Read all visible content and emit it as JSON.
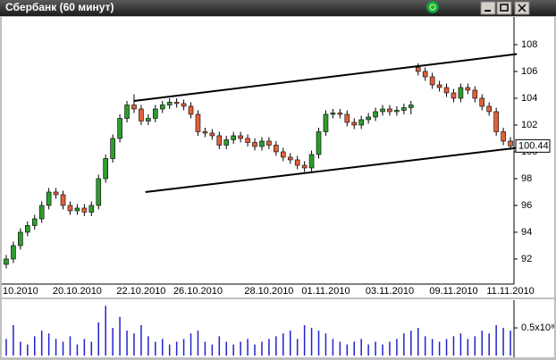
{
  "chart_data": {
    "type": "candlestick",
    "title": "Сбербанк (60 минут)",
    "categories": [
      null,
      null,
      "10.2010",
      null,
      null,
      null,
      null,
      null,
      null,
      null,
      "20.10.2010",
      null,
      null,
      null,
      null,
      null,
      null,
      null,
      null,
      "22.10.2010",
      null,
      null,
      null,
      null,
      null,
      null,
      null,
      "26.10.2010",
      null,
      null,
      null,
      null,
      null,
      null,
      null,
      null,
      null,
      "28.10.2010",
      null,
      null,
      null,
      null,
      null,
      null,
      null,
      "01.11.2010",
      null,
      null,
      null,
      null,
      null,
      null,
      null,
      null,
      "03.11.2010",
      null,
      null,
      null,
      null,
      null,
      null,
      null,
      null,
      "09.11.2010",
      null,
      null,
      null,
      null,
      null,
      null,
      null,
      "11.11.2010"
    ],
    "open": [
      91.6,
      92.0,
      93.0,
      94.0,
      94.5,
      95.0,
      96.0,
      97.0,
      96.8,
      96.0,
      95.6,
      95.8,
      95.5,
      96.0,
      98.0,
      99.5,
      101.0,
      102.5,
      103.5,
      103.2,
      102.3,
      102.5,
      103.2,
      103.5,
      103.7,
      103.6,
      103.4,
      102.8,
      101.5,
      101.4,
      101.2,
      100.5,
      100.9,
      101.2,
      101.0,
      100.7,
      100.4,
      100.8,
      100.5,
      100.0,
      99.6,
      99.4,
      99.0,
      98.8,
      99.8,
      101.5,
      102.8,
      102.9,
      102.8,
      102.2,
      102.0,
      102.4,
      102.6,
      103.0,
      103.2,
      103.0,
      103.1,
      103.3,
      106.3,
      106.0,
      105.6,
      105.0,
      104.8,
      104.4,
      104.0,
      104.8,
      104.6,
      104.0,
      103.4,
      103.0,
      101.5,
      100.8
    ],
    "high": [
      92.3,
      93.3,
      94.3,
      94.8,
      95.3,
      96.3,
      97.3,
      97.3,
      97.1,
      96.3,
      96.1,
      96.1,
      96.3,
      98.3,
      99.8,
      101.3,
      102.8,
      103.8,
      104.3,
      103.5,
      102.8,
      103.5,
      103.8,
      104.0,
      104.0,
      103.9,
      103.7,
      103.1,
      101.8,
      101.7,
      101.5,
      101.2,
      101.5,
      101.5,
      101.3,
      101.0,
      101.1,
      101.1,
      100.8,
      100.3,
      99.9,
      99.7,
      99.3,
      100.1,
      101.8,
      103.1,
      103.2,
      103.2,
      103.1,
      102.5,
      102.7,
      102.9,
      103.3,
      103.5,
      103.5,
      103.4,
      103.6,
      103.8,
      106.6,
      106.3,
      105.9,
      105.3,
      105.1,
      104.7,
      105.1,
      105.1,
      104.9,
      104.3,
      103.7,
      103.3,
      101.8,
      101.1
    ],
    "low": [
      91.3,
      91.7,
      92.7,
      93.7,
      94.2,
      94.7,
      95.7,
      96.5,
      95.7,
      95.3,
      95.3,
      95.2,
      95.2,
      95.7,
      97.7,
      99.2,
      100.7,
      102.2,
      102.9,
      102.0,
      102.0,
      102.2,
      102.9,
      103.2,
      103.3,
      103.1,
      102.5,
      101.2,
      101.1,
      100.9,
      100.2,
      100.2,
      100.6,
      100.7,
      100.4,
      100.1,
      100.1,
      100.2,
      99.7,
      99.3,
      99.1,
      98.7,
      98.5,
      98.5,
      99.5,
      101.2,
      102.5,
      102.5,
      101.9,
      101.7,
      101.7,
      102.1,
      102.3,
      102.7,
      102.7,
      102.7,
      102.8,
      102.8,
      105.7,
      105.3,
      104.7,
      104.5,
      104.1,
      103.7,
      103.7,
      104.3,
      103.7,
      103.1,
      102.7,
      101.2,
      100.5,
      100.14
    ],
    "close": [
      92.0,
      93.0,
      94.0,
      94.5,
      95.0,
      96.0,
      97.0,
      96.8,
      96.0,
      95.6,
      95.8,
      95.5,
      96.0,
      98.0,
      99.5,
      101.0,
      102.5,
      103.5,
      103.2,
      102.3,
      102.5,
      103.2,
      103.5,
      103.7,
      103.6,
      103.4,
      102.8,
      101.5,
      101.4,
      101.2,
      100.5,
      100.9,
      101.2,
      101.0,
      100.7,
      100.4,
      100.8,
      100.5,
      100.0,
      99.6,
      99.4,
      99.0,
      98.8,
      99.8,
      101.5,
      102.8,
      102.9,
      102.8,
      102.2,
      102.0,
      102.4,
      102.6,
      103.0,
      103.2,
      103.0,
      103.1,
      103.3,
      103.5,
      106.0,
      105.6,
      105.0,
      104.8,
      104.4,
      104.0,
      104.8,
      104.6,
      104.0,
      103.4,
      103.0,
      101.5,
      100.8,
      100.44
    ],
    "up_color": "#2e9c2e",
    "down_color": "#e0603c",
    "ylim": [
      90.13,
      110
    ],
    "yticks": [
      92,
      94,
      96,
      98,
      100,
      102,
      104,
      106,
      108
    ],
    "grid": false,
    "trendlines": [
      {
        "x": [
          18.0,
          71.9
        ],
        "y": [
          103.8,
          107.3
        ]
      },
      {
        "x": [
          19.6,
          71.9
        ],
        "y": [
          97.0,
          100.3
        ]
      }
    ],
    "volume": [
      30000000,
      55000000,
      25000000,
      20000000,
      35000000,
      45000000,
      40000000,
      30000000,
      25000000,
      35000000,
      20000000,
      30000000,
      25000000,
      60000000,
      90000000,
      50000000,
      70000000,
      45000000,
      40000000,
      55000000,
      35000000,
      25000000,
      30000000,
      20000000,
      25000000,
      30000000,
      40000000,
      45000000,
      25000000,
      20000000,
      35000000,
      25000000,
      20000000,
      25000000,
      30000000,
      20000000,
      25000000,
      30000000,
      35000000,
      40000000,
      45000000,
      30000000,
      55000000,
      50000000,
      45000000,
      40000000,
      30000000,
      25000000,
      20000000,
      25000000,
      30000000,
      20000000,
      25000000,
      20000000,
      25000000,
      30000000,
      40000000,
      45000000,
      50000000,
      35000000,
      30000000,
      25000000,
      30000000,
      35000000,
      40000000,
      30000000,
      35000000,
      45000000,
      40000000,
      55000000,
      50000000,
      45000000
    ],
    "volume_color": "#2222cc",
    "vlim": [
      0,
      97000000
    ],
    "vticks": [
      {
        "value": 50000000,
        "label": "0.5x10⁸"
      }
    ]
  }
}
